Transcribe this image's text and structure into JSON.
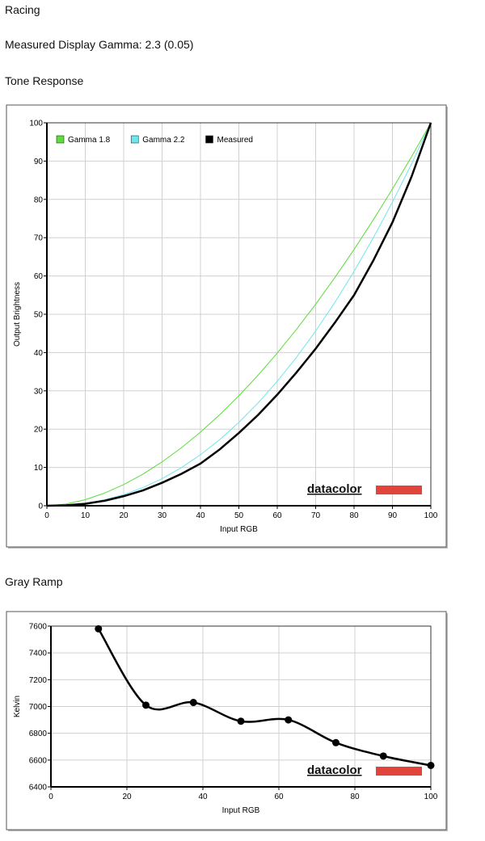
{
  "page": {
    "heading": "Racing",
    "gamma_text": "Measured Display Gamma: 2.3 (0.05)",
    "section1": "Tone Response",
    "section2": "Gray Ramp"
  },
  "chart_data": [
    {
      "type": "line",
      "x_label": "Input RGB",
      "y_label": "Output Brightness",
      "watermark": "datacolor",
      "x": [
        0,
        5,
        10,
        15,
        20,
        25,
        30,
        35,
        40,
        45,
        50,
        55,
        60,
        65,
        70,
        75,
        80,
        85,
        90,
        95,
        100
      ],
      "series": [
        {
          "name": "Gamma 1.8",
          "color": "#5ddc3c",
          "width": 1,
          "values": [
            0,
            0.46,
            1.58,
            3.29,
            5.52,
            8.25,
            11.45,
            15.11,
            19.22,
            23.76,
            28.72,
            34.1,
            39.87,
            46.05,
            52.63,
            59.58,
            66.92,
            74.64,
            82.72,
            91.18,
            100
          ]
        },
        {
          "name": "Gamma 2.2",
          "color": "#6ee6ee",
          "width": 1,
          "values": [
            0,
            0.14,
            0.63,
            1.54,
            2.9,
            4.74,
            7.07,
            9.93,
            13.32,
            17.26,
            21.76,
            26.84,
            32.51,
            38.76,
            45.62,
            53.1,
            61.21,
            69.94,
            79.31,
            89.33,
            100
          ]
        },
        {
          "name": "Measured",
          "color": "#000000",
          "width": 2.5,
          "values": [
            0,
            0.1,
            0.5,
            1.3,
            2.5,
            4,
            6,
            8.3,
            11,
            14.7,
            19,
            23.7,
            29,
            34.8,
            41,
            47.8,
            55,
            64,
            74,
            86,
            100
          ]
        }
      ],
      "xlim": [
        0,
        100
      ],
      "ylim": [
        0,
        100
      ],
      "xticks": [
        0,
        10,
        20,
        30,
        40,
        50,
        60,
        70,
        80,
        90,
        100
      ],
      "yticks": [
        0,
        10,
        20,
        30,
        40,
        50,
        60,
        70,
        80,
        90,
        100
      ],
      "grid": true,
      "legend": "top-left"
    },
    {
      "type": "line",
      "x_label": "Input RGB",
      "y_label": "Kelvin",
      "watermark": "datacolor",
      "x": [
        12.5,
        25,
        37.5,
        50,
        62.5,
        75,
        87.5,
        100
      ],
      "series": [
        {
          "color": "#000000",
          "width": 2.5,
          "markers": true,
          "values": [
            7580,
            7010,
            7030,
            6890,
            6900,
            6730,
            6630,
            6560
          ]
        }
      ],
      "xlim": [
        0,
        100
      ],
      "ylim": [
        6400,
        7600
      ],
      "xticks": [
        0,
        20,
        40,
        60,
        80,
        100
      ],
      "yticks": [
        6400,
        6600,
        6800,
        7000,
        7200,
        7400,
        7600
      ],
      "grid": true,
      "smooth": true
    }
  ]
}
